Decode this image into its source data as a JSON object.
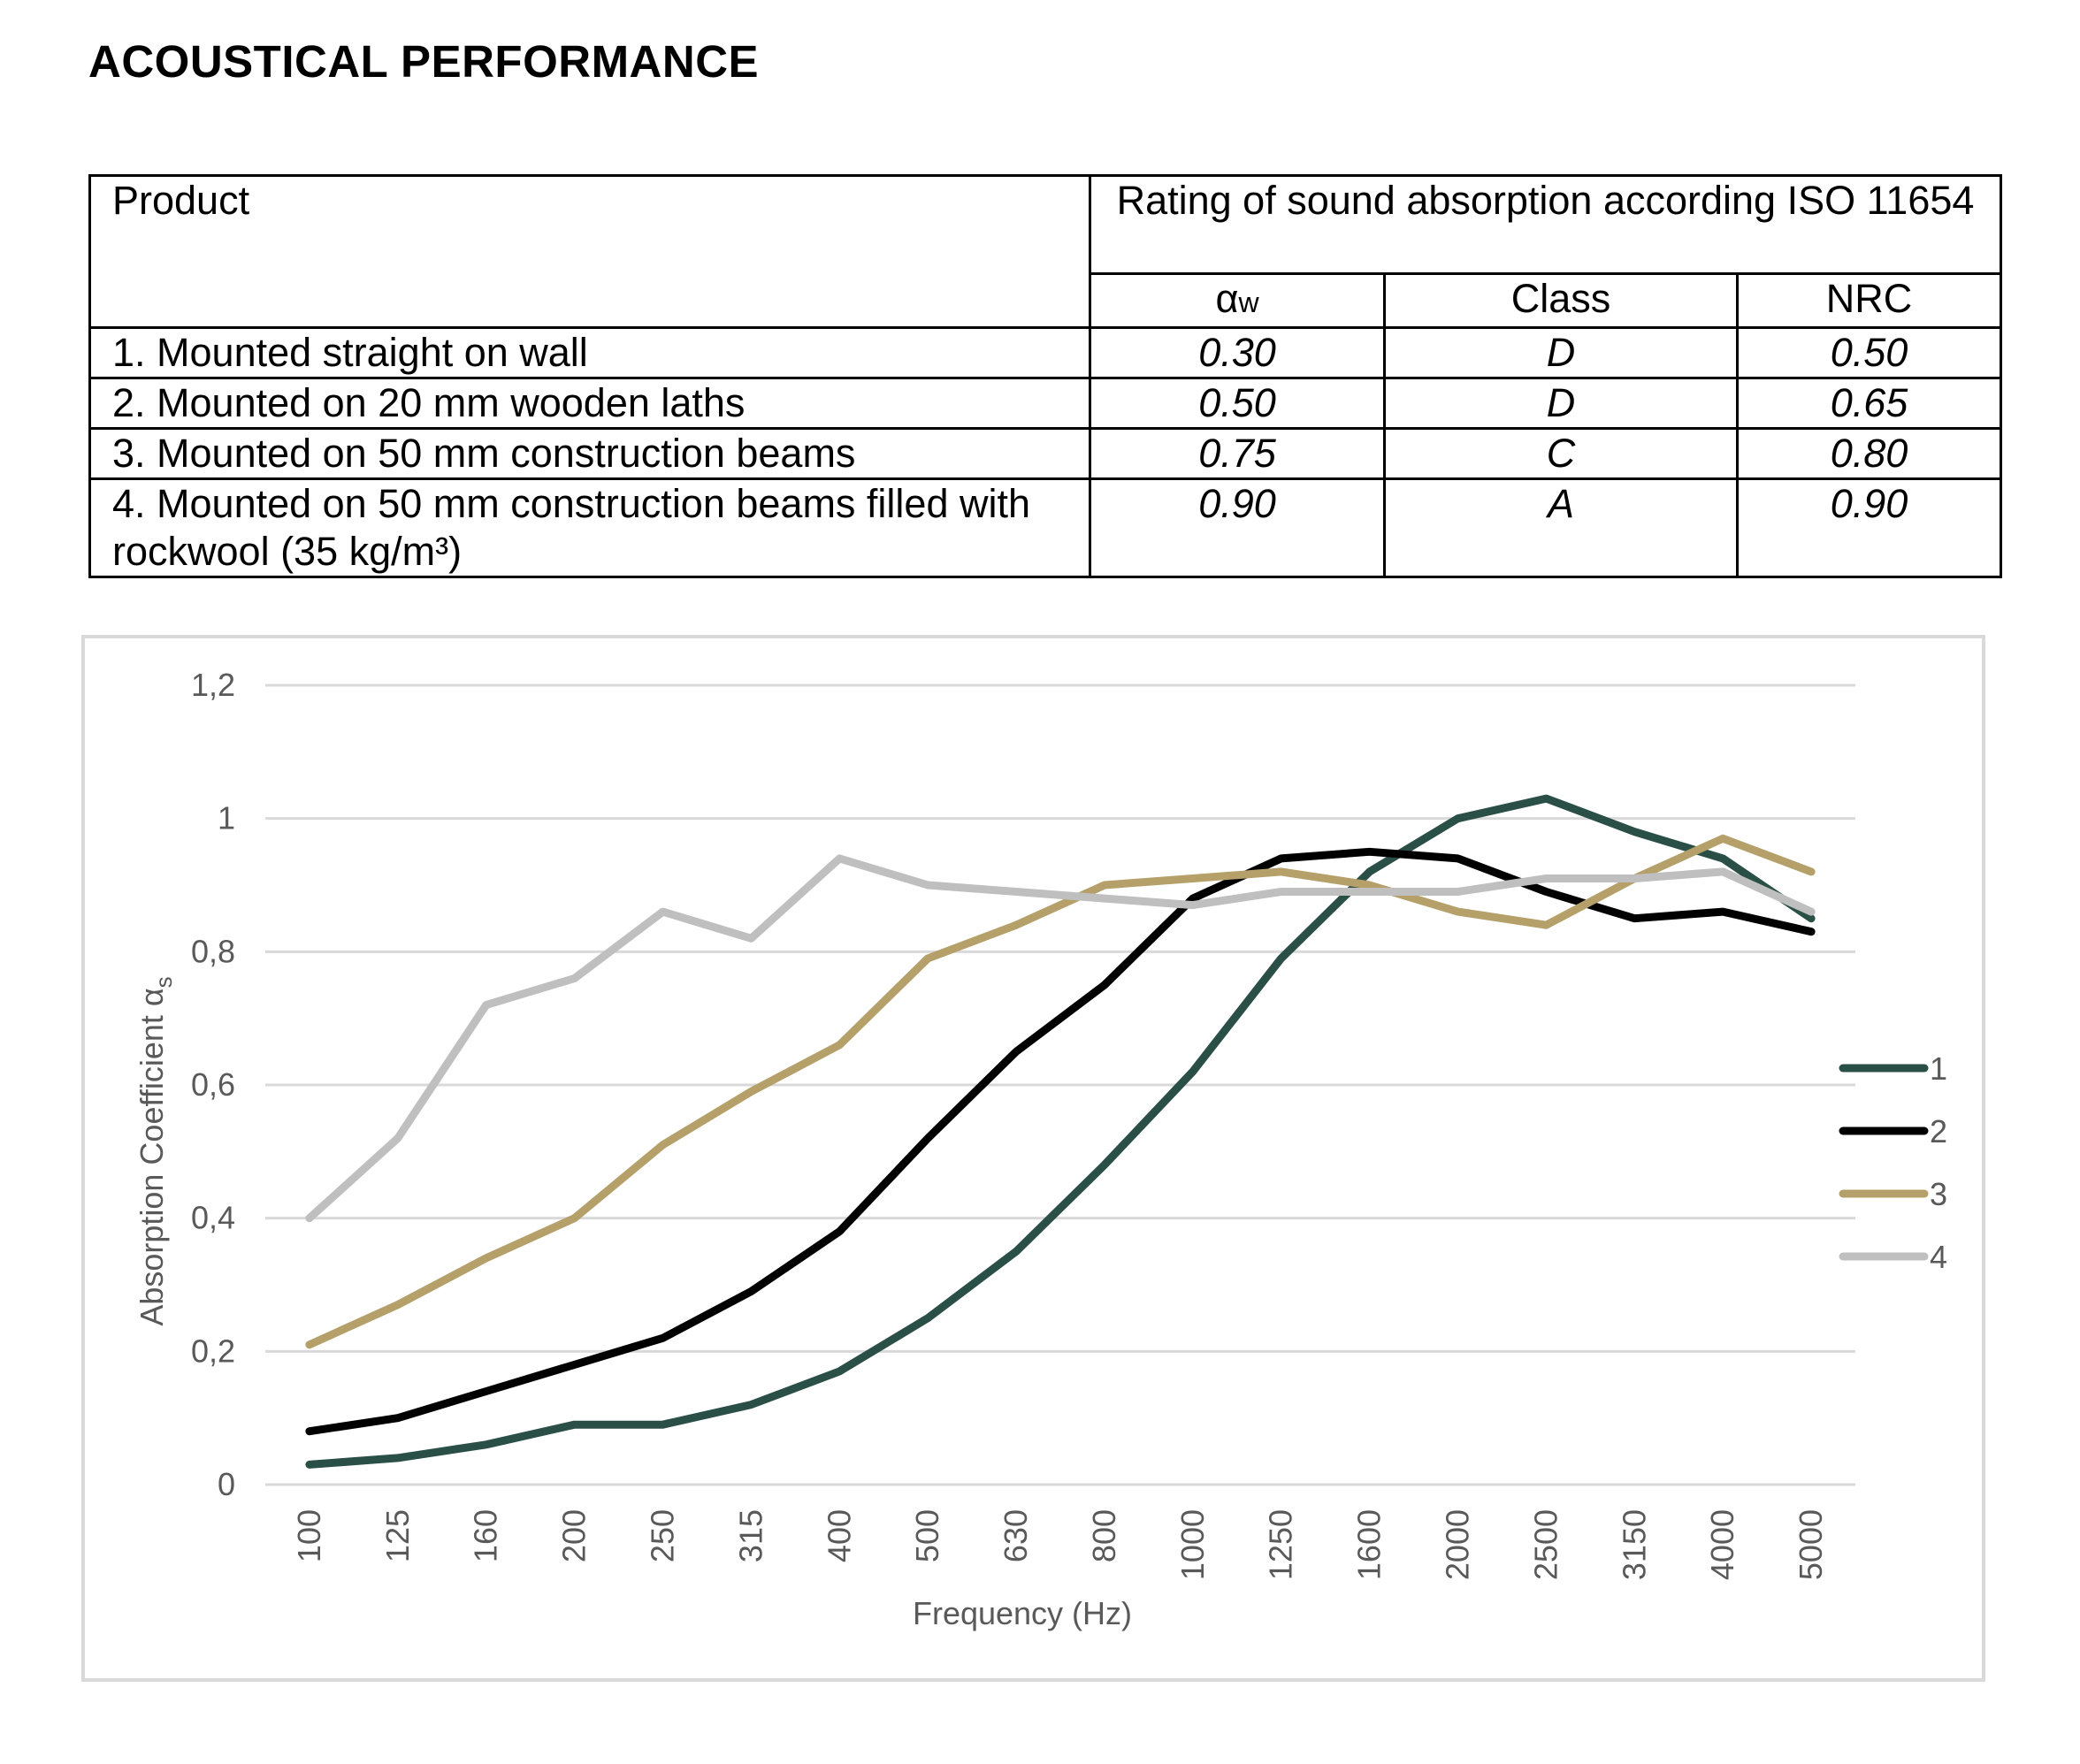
{
  "title": "ACOUSTICAL PERFORMANCE",
  "table": {
    "product_header": "Product",
    "rating_header": "Rating of sound absorption according ISO 11654",
    "alpha_header_main": "α",
    "alpha_header_sub": "w",
    "class_header": "Class",
    "nrc_header": "NRC",
    "rows": [
      {
        "product": "1. Mounted straight on wall",
        "alpha": "0.30",
        "class": "D",
        "nrc": "0.50"
      },
      {
        "product": "2. Mounted on 20 mm wooden laths",
        "alpha": "0.50",
        "class": "D",
        "nrc": "0.65"
      },
      {
        "product": "3. Mounted on 50 mm construction beams",
        "alpha": "0.75",
        "class": "C",
        "nrc": "0.80"
      },
      {
        "product": "4. Mounted on 50 mm construction beams filled with rockwool (35 kg/m³)",
        "alpha": "0.90",
        "class": "A",
        "nrc": "0.90"
      }
    ]
  },
  "chart_data": {
    "type": "line",
    "xlabel": "Frequency (Hz)",
    "ylabel": "Absorption Coefficient α",
    "ylabel_sub": "s",
    "ylim": [
      0,
      1.2
    ],
    "yticks": [
      "0",
      "0,2",
      "0,4",
      "0,6",
      "0,8",
      "1",
      "1,2"
    ],
    "grid": true,
    "legend_position": "right",
    "categories": [
      "100",
      "125",
      "160",
      "200",
      "250",
      "315",
      "400",
      "500",
      "630",
      "800",
      "1000",
      "1250",
      "1600",
      "2000",
      "2500",
      "3150",
      "4000",
      "5000"
    ],
    "series": [
      {
        "name": "1",
        "color": "#2a4f47",
        "values": [
          0.03,
          0.04,
          0.06,
          0.09,
          0.09,
          0.12,
          0.17,
          0.25,
          0.35,
          0.48,
          0.62,
          0.79,
          0.92,
          1.0,
          1.03,
          0.98,
          0.94,
          0.85
        ]
      },
      {
        "name": "2",
        "color": "#000000",
        "values": [
          0.08,
          0.1,
          0.14,
          0.18,
          0.22,
          0.29,
          0.38,
          0.52,
          0.65,
          0.75,
          0.88,
          0.94,
          0.95,
          0.94,
          0.89,
          0.85,
          0.86,
          0.83
        ]
      },
      {
        "name": "3",
        "color": "#b5a06a",
        "values": [
          0.21,
          0.27,
          0.34,
          0.4,
          0.51,
          0.59,
          0.66,
          0.79,
          0.84,
          0.9,
          0.91,
          0.92,
          0.9,
          0.86,
          0.84,
          0.91,
          0.97,
          0.92
        ]
      },
      {
        "name": "4",
        "color": "#bfbfbf",
        "values": [
          0.4,
          0.52,
          0.72,
          0.76,
          0.86,
          0.82,
          0.94,
          0.9,
          0.89,
          0.88,
          0.87,
          0.89,
          0.89,
          0.89,
          0.91,
          0.91,
          0.92,
          0.86
        ]
      }
    ]
  }
}
